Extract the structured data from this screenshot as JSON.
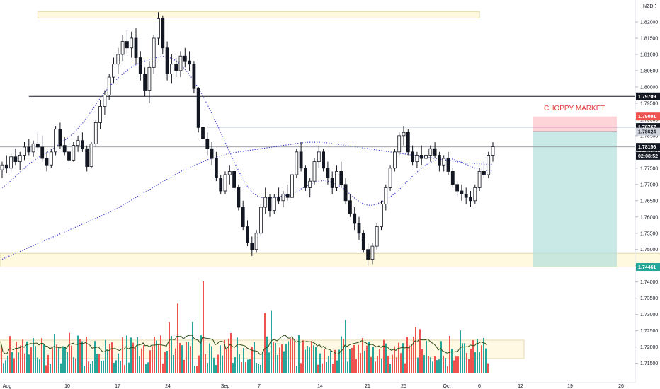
{
  "symbol_label": "NZD",
  "menu_label": "⋮",
  "annotation": "CHOPPY MARKET",
  "colors": {
    "up": "#26a69a",
    "down": "#ef5350",
    "candle": "#131722",
    "ma_fast": "#3c3cd0",
    "ma_slow": "#3c3cd0",
    "zone_fill": "#fff9e0",
    "zone_stroke": "#e0d8a8",
    "target_fill": "#b2dfdb",
    "stop_fill": "#ffcdd2",
    "accent_green": "#26a69a",
    "accent_red": "#ef5350"
  },
  "chart_data": {
    "type": "candlestick",
    "y_axis": {
      "min": 1.711,
      "max": 1.825,
      "ticks": [
        "1.82000",
        "1.81500",
        "1.81000",
        "1.80500",
        "1.80000",
        "1.79500",
        "1.79000",
        "1.78500",
        "1.78000",
        "1.77500",
        "1.77000",
        "1.76500",
        "1.76000",
        "1.75500",
        "1.75000",
        "1.74500",
        "1.74000",
        "1.73500",
        "1.73000",
        "1.72500",
        "1.72000",
        "1.71500"
      ]
    },
    "x_axis": {
      "ticks": [
        "Aug",
        "10",
        "17",
        "24",
        "Sep",
        "7",
        "14",
        "21",
        "25",
        "Oct",
        "6",
        "12",
        "19",
        "26"
      ]
    },
    "price_tags": [
      {
        "value": "1.79709",
        "price": 1.79709,
        "style": "black"
      },
      {
        "value": "1.79091",
        "price": 1.79091,
        "style": "red"
      },
      {
        "value": "1.78767",
        "price": 1.78767,
        "style": "black"
      },
      {
        "value": "1.78624",
        "price": 1.78624,
        "style": "grey"
      },
      {
        "value": "1.78156",
        "price": 1.78156,
        "style": "black"
      },
      {
        "value": "02:08:52",
        "price": 1.7788,
        "style": "black"
      },
      {
        "value": "1.74461",
        "price": 1.74461,
        "style": "green"
      }
    ],
    "levels": [
      {
        "price": 1.79709,
        "from_index": 6
      },
      {
        "price": 1.78767,
        "from_index": 46
      }
    ],
    "current_price": 1.78156,
    "zones": [
      {
        "name": "top-supply-zone",
        "price_top": 1.8232,
        "price_bottom": 1.8212,
        "from_index": 8,
        "to_index": 107
      },
      {
        "name": "bottom-demand-zone",
        "price_top": 1.7488,
        "price_bottom": 1.7446,
        "from_index": 0,
        "to_index": 153
      }
    ],
    "position": {
      "entry": 1.78624,
      "stop": 1.79091,
      "target": 1.74461,
      "from_index": 130,
      "to_index": 150
    },
    "candles_ohlc": [
      [
        1.7745,
        1.777,
        1.772,
        1.776
      ],
      [
        1.776,
        1.779,
        1.7735,
        1.775
      ],
      [
        1.775,
        1.7795,
        1.774,
        1.7785
      ],
      [
        1.7785,
        1.781,
        1.776,
        1.777
      ],
      [
        1.777,
        1.78,
        1.7745,
        1.779
      ],
      [
        1.779,
        1.783,
        1.7775,
        1.7815
      ],
      [
        1.7815,
        1.784,
        1.779,
        1.78
      ],
      [
        1.78,
        1.7835,
        1.7785,
        1.7825
      ],
      [
        1.7825,
        1.786,
        1.7805,
        1.7815
      ],
      [
        1.7815,
        1.785,
        1.777,
        1.778
      ],
      [
        1.778,
        1.78,
        1.774,
        1.776
      ],
      [
        1.776,
        1.781,
        1.775,
        1.78
      ],
      [
        1.78,
        1.788,
        1.779,
        1.787
      ],
      [
        1.787,
        1.789,
        1.781,
        1.782
      ],
      [
        1.782,
        1.7845,
        1.779,
        1.78
      ],
      [
        1.78,
        1.782,
        1.776,
        1.7775
      ],
      [
        1.7775,
        1.783,
        1.777,
        1.782
      ],
      [
        1.782,
        1.785,
        1.78,
        1.7835
      ],
      [
        1.7835,
        1.786,
        1.78,
        1.781
      ],
      [
        1.781,
        1.782,
        1.774,
        1.7755
      ],
      [
        1.7755,
        1.783,
        1.775,
        1.7825
      ],
      [
        1.7825,
        1.79,
        1.7815,
        1.789
      ],
      [
        1.789,
        1.796,
        1.787,
        1.794
      ],
      [
        1.794,
        1.799,
        1.7915,
        1.7975
      ],
      [
        1.7975,
        1.804,
        1.796,
        1.803
      ],
      [
        1.803,
        1.809,
        1.801,
        1.807
      ],
      [
        1.807,
        1.812,
        1.804,
        1.81
      ],
      [
        1.81,
        1.816,
        1.808,
        1.814
      ],
      [
        1.814,
        1.8175,
        1.81,
        1.812
      ],
      [
        1.812,
        1.817,
        1.809,
        1.815
      ],
      [
        1.815,
        1.818,
        1.807,
        1.809
      ],
      [
        1.809,
        1.811,
        1.802,
        1.804
      ],
      [
        1.804,
        1.806,
        1.797,
        1.799
      ],
      [
        1.799,
        1.808,
        1.795,
        1.806
      ],
      [
        1.806,
        1.816,
        1.804,
        1.815
      ],
      [
        1.815,
        1.823,
        1.813,
        1.821
      ],
      [
        1.821,
        1.822,
        1.81,
        1.812
      ],
      [
        1.812,
        1.814,
        1.802,
        1.804
      ],
      [
        1.804,
        1.81,
        1.801,
        1.807
      ],
      [
        1.807,
        1.809,
        1.803,
        1.805
      ],
      [
        1.805,
        1.811,
        1.803,
        1.8095
      ],
      [
        1.8095,
        1.812,
        1.806,
        1.808
      ],
      [
        1.808,
        1.811,
        1.805,
        1.807
      ],
      [
        1.807,
        1.808,
        1.798,
        1.7995
      ],
      [
        1.7995,
        1.8,
        1.786,
        1.7875
      ],
      [
        1.7875,
        1.789,
        1.782,
        1.784
      ],
      [
        1.784,
        1.786,
        1.779,
        1.781
      ],
      [
        1.781,
        1.783,
        1.776,
        1.778
      ],
      [
        1.778,
        1.78,
        1.771,
        1.772
      ],
      [
        1.772,
        1.773,
        1.767,
        1.768
      ],
      [
        1.768,
        1.774,
        1.767,
        1.773
      ],
      [
        1.773,
        1.776,
        1.77,
        1.774
      ],
      [
        1.774,
        1.775,
        1.768,
        1.769
      ],
      [
        1.769,
        1.77,
        1.762,
        1.763
      ],
      [
        1.763,
        1.765,
        1.756,
        1.757
      ],
      [
        1.757,
        1.759,
        1.751,
        1.752
      ],
      [
        1.752,
        1.754,
        1.748,
        1.75
      ],
      [
        1.75,
        1.756,
        1.749,
        1.755
      ],
      [
        1.755,
        1.764,
        1.754,
        1.763
      ],
      [
        1.763,
        1.769,
        1.761,
        1.766
      ],
      [
        1.766,
        1.767,
        1.76,
        1.762
      ],
      [
        1.762,
        1.767,
        1.761,
        1.766
      ],
      [
        1.766,
        1.769,
        1.764,
        1.765
      ],
      [
        1.765,
        1.768,
        1.763,
        1.767
      ],
      [
        1.767,
        1.77,
        1.765,
        1.766
      ],
      [
        1.766,
        1.774,
        1.765,
        1.773
      ],
      [
        1.773,
        1.781,
        1.772,
        1.78
      ],
      [
        1.78,
        1.783,
        1.774,
        1.775
      ],
      [
        1.775,
        1.776,
        1.768,
        1.769
      ],
      [
        1.769,
        1.772,
        1.766,
        1.771
      ],
      [
        1.771,
        1.778,
        1.77,
        1.777
      ],
      [
        1.777,
        1.782,
        1.775,
        1.78
      ],
      [
        1.78,
        1.781,
        1.774,
        1.775
      ],
      [
        1.775,
        1.777,
        1.77,
        1.772
      ],
      [
        1.772,
        1.774,
        1.767,
        1.769
      ],
      [
        1.769,
        1.776,
        1.768,
        1.774
      ],
      [
        1.774,
        1.777,
        1.769,
        1.77
      ],
      [
        1.77,
        1.772,
        1.764,
        1.765
      ],
      [
        1.765,
        1.767,
        1.76,
        1.761
      ],
      [
        1.761,
        1.763,
        1.756,
        1.758
      ],
      [
        1.758,
        1.76,
        1.753,
        1.755
      ],
      [
        1.755,
        1.756,
        1.749,
        1.75
      ],
      [
        1.75,
        1.752,
        1.745,
        1.747
      ],
      [
        1.747,
        1.752,
        1.7455,
        1.751
      ],
      [
        1.751,
        1.758,
        1.75,
        1.757
      ],
      [
        1.757,
        1.765,
        1.756,
        1.764
      ],
      [
        1.764,
        1.77,
        1.762,
        1.769
      ],
      [
        1.769,
        1.776,
        1.768,
        1.775
      ],
      [
        1.775,
        1.781,
        1.774,
        1.78
      ],
      [
        1.78,
        1.786,
        1.779,
        1.785
      ],
      [
        1.785,
        1.788,
        1.782,
        1.786
      ],
      [
        1.786,
        1.787,
        1.779,
        1.78
      ],
      [
        1.78,
        1.782,
        1.776,
        1.777
      ],
      [
        1.777,
        1.78,
        1.775,
        1.779
      ],
      [
        1.779,
        1.782,
        1.776,
        1.778
      ],
      [
        1.778,
        1.78,
        1.775,
        1.779
      ],
      [
        1.779,
        1.782,
        1.777,
        1.781
      ],
      [
        1.781,
        1.783,
        1.778,
        1.779
      ],
      [
        1.779,
        1.78,
        1.774,
        1.776
      ],
      [
        1.776,
        1.779,
        1.774,
        1.778
      ],
      [
        1.778,
        1.78,
        1.773,
        1.774
      ],
      [
        1.774,
        1.775,
        1.769,
        1.77
      ],
      [
        1.77,
        1.771,
        1.766,
        1.768
      ],
      [
        1.768,
        1.77,
        1.765,
        1.767
      ],
      [
        1.767,
        1.769,
        1.764,
        1.766
      ],
      [
        1.766,
        1.768,
        1.763,
        1.765
      ],
      [
        1.765,
        1.77,
        1.764,
        1.769
      ],
      [
        1.769,
        1.775,
        1.768,
        1.774
      ],
      [
        1.774,
        1.777,
        1.772,
        1.773
      ],
      [
        1.773,
        1.78,
        1.772,
        1.779
      ],
      [
        1.779,
        1.783,
        1.777,
        1.7816
      ]
    ],
    "ma_fast": [
      1.769,
      1.77,
      1.7712,
      1.7725,
      1.7738,
      1.775,
      1.7762,
      1.7772,
      1.7782,
      1.779,
      1.7798,
      1.7806,
      1.7816,
      1.7826,
      1.7836,
      1.7846,
      1.7858,
      1.7872,
      1.7888,
      1.7906,
      1.7926,
      1.7946,
      1.7966,
      1.7984,
      1.8,
      1.8014,
      1.8028,
      1.804,
      1.805,
      1.806,
      1.8068,
      1.8075,
      1.808,
      1.8084,
      1.8088,
      1.8092,
      1.8094,
      1.8092,
      1.8088,
      1.808,
      1.8068,
      1.8054,
      1.8038,
      1.8018,
      1.7996,
      1.7972,
      1.7946,
      1.7918,
      1.789,
      1.786,
      1.783,
      1.78,
      1.777,
      1.7742,
      1.7716,
      1.7694,
      1.7676,
      1.7666,
      1.766,
      1.7658,
      1.7658,
      1.766,
      1.7662,
      1.7664,
      1.7668,
      1.7672,
      1.7678,
      1.7686,
      1.7694,
      1.77,
      1.7706,
      1.771,
      1.7712,
      1.771,
      1.7706,
      1.77,
      1.7692,
      1.7682,
      1.767,
      1.7658,
      1.7648,
      1.764,
      1.7636,
      1.7636,
      1.764,
      1.7646,
      1.7654,
      1.7662,
      1.7672,
      1.7684,
      1.7698,
      1.7712,
      1.7726,
      1.7738,
      1.775,
      1.776,
      1.7768,
      1.7774,
      1.7778,
      1.778,
      1.778,
      1.7778,
      1.7774,
      1.7768,
      1.7762,
      1.7756,
      1.775,
      1.7746,
      1.7744,
      1.7742,
      1.7742
    ],
    "ma_slow": [
      1.747,
      1.7476,
      1.7482,
      1.7488,
      1.7494,
      1.75,
      1.7506,
      1.7512,
      1.7518,
      1.7524,
      1.753,
      1.7536,
      1.7542,
      1.7548,
      1.7554,
      1.756,
      1.7566,
      1.7572,
      1.7578,
      1.7584,
      1.759,
      1.7596,
      1.7602,
      1.7608,
      1.7614,
      1.762,
      1.7628,
      1.7636,
      1.7644,
      1.7652,
      1.766,
      1.7668,
      1.7676,
      1.7684,
      1.7692,
      1.77,
      1.7708,
      1.7716,
      1.7724,
      1.7732,
      1.774,
      1.7746,
      1.7752,
      1.7758,
      1.7764,
      1.777,
      1.7776,
      1.778,
      1.7784,
      1.7788,
      1.7792,
      1.7795,
      1.7798,
      1.78,
      1.7802,
      1.7804,
      1.7806,
      1.7808,
      1.781,
      1.7812,
      1.7814,
      1.7816,
      1.7818,
      1.782,
      1.7822,
      1.7824,
      1.7826,
      1.7828,
      1.7829,
      1.783,
      1.783,
      1.783,
      1.7829,
      1.7828,
      1.7826,
      1.7824,
      1.7822,
      1.782,
      1.7818,
      1.7816,
      1.7814,
      1.7812,
      1.781,
      1.7808,
      1.7806,
      1.7804,
      1.7802,
      1.78,
      1.7798,
      1.7796,
      1.7794,
      1.7792,
      1.779,
      1.7788,
      1.7786,
      1.7784,
      1.7782,
      1.778,
      1.7778,
      1.7776,
      1.7774,
      1.7772,
      1.777,
      1.7768,
      1.7766,
      1.7765,
      1.7764,
      1.7763,
      1.7762,
      1.7762,
      1.7762
    ]
  }
}
